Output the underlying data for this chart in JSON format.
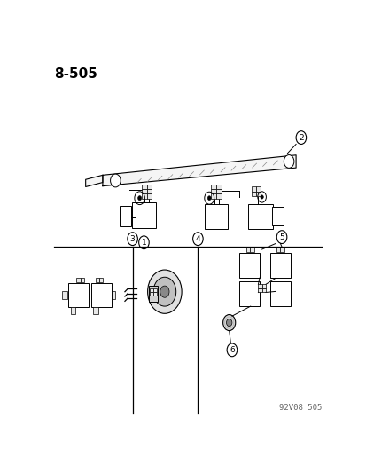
{
  "title": "8-505",
  "subtitle": "92V08 505",
  "bg_color": "#ffffff",
  "line_color": "#000000",
  "title_fontsize": 11,
  "subtitle_fontsize": 6.5,
  "label_fontsize": 7,
  "fig_w": 4.14,
  "fig_h": 5.33,
  "dpi": 100
}
